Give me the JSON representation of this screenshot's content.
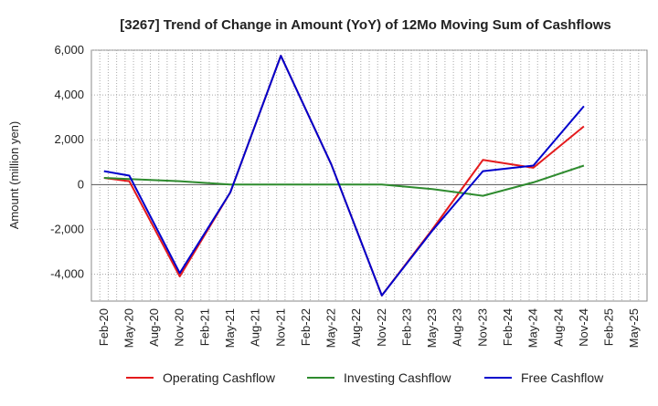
{
  "chart_data": {
    "type": "line",
    "title": "[3267]  Trend of Change in Amount (YoY) of 12Mo Moving Sum of Cashflows",
    "xlabel": "",
    "ylabel": "Amount (million yen)",
    "ylim": [
      -5200,
      6000
    ],
    "yticks": [
      6000,
      4000,
      2000,
      0,
      -2000,
      -4000
    ],
    "ytick_labels": [
      "6,000",
      "4,000",
      "2,000",
      "0",
      "-2,000",
      "-4,000"
    ],
    "categories": [
      "Feb-20",
      "May-20",
      "Aug-20",
      "Nov-20",
      "Feb-21",
      "May-21",
      "Aug-21",
      "Nov-21",
      "Feb-22",
      "May-22",
      "Aug-22",
      "Nov-22",
      "Feb-23",
      "May-23",
      "Aug-23",
      "Nov-23",
      "Feb-24",
      "May-24",
      "Aug-24",
      "Nov-24",
      "Feb-25",
      "May-25"
    ],
    "grid": true,
    "legend_position": "bottom",
    "series": [
      {
        "name": "Operating Cashflow",
        "color": "#e41a1c",
        "points": [
          [
            0,
            300
          ],
          [
            1,
            150
          ],
          [
            3,
            -4100
          ],
          [
            5,
            -350
          ],
          [
            7,
            5750
          ],
          [
            9,
            900
          ],
          [
            11,
            -4950
          ],
          [
            13,
            -2000
          ],
          [
            15,
            1100
          ],
          [
            17,
            750
          ],
          [
            19,
            2600
          ]
        ]
      },
      {
        "name": "Investing Cashflow",
        "color": "#2e8b2e",
        "points": [
          [
            0,
            300
          ],
          [
            1,
            250
          ],
          [
            3,
            150
          ],
          [
            5,
            0
          ],
          [
            7,
            0
          ],
          [
            9,
            0
          ],
          [
            11,
            0
          ],
          [
            13,
            -200
          ],
          [
            15,
            -500
          ],
          [
            17,
            100
          ],
          [
            19,
            850
          ]
        ]
      },
      {
        "name": "Free Cashflow",
        "color": "#0000cc",
        "points": [
          [
            0,
            600
          ],
          [
            1,
            400
          ],
          [
            3,
            -3950
          ],
          [
            5,
            -350
          ],
          [
            7,
            5750
          ],
          [
            9,
            900
          ],
          [
            11,
            -4950
          ],
          [
            13,
            -2050
          ],
          [
            15,
            600
          ],
          [
            17,
            850
          ],
          [
            19,
            3500
          ]
        ]
      }
    ]
  }
}
